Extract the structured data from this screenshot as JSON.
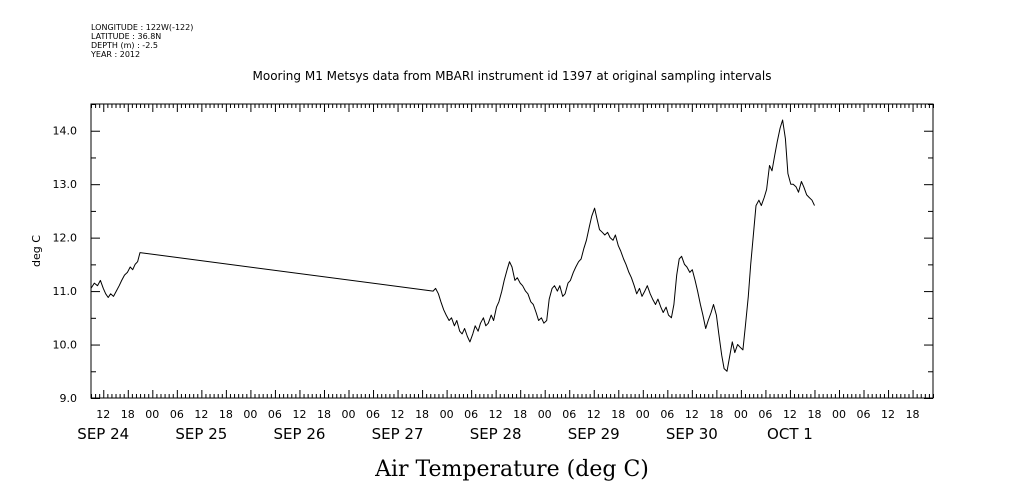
{
  "header": {
    "lines": [
      "LONGITUDE : 122W(-122)",
      "LATITUDE : 36.8N",
      "DEPTH (m) : -2.5",
      "YEAR : 2012"
    ]
  },
  "chart_data": {
    "type": "line",
    "title": "Mooring M1 Metsys data from MBARI instrument id 1397 at original sampling intervals",
    "xlabel": "Air Temperature (deg C)",
    "ylabel": "deg C",
    "x_unit": "hours since SEP 24 00:00 (2012)",
    "xlim": [
      9,
      215
    ],
    "ylim": [
      9.0,
      14.5
    ],
    "y_ticks": [
      9.0,
      10.0,
      11.0,
      12.0,
      13.0,
      14.0
    ],
    "hour_ticks": [
      {
        "t": 12,
        "label": "12"
      },
      {
        "t": 18,
        "label": "18"
      },
      {
        "t": 24,
        "label": "00"
      },
      {
        "t": 30,
        "label": "06"
      },
      {
        "t": 36,
        "label": "12"
      },
      {
        "t": 42,
        "label": "18"
      },
      {
        "t": 48,
        "label": "00"
      },
      {
        "t": 54,
        "label": "06"
      },
      {
        "t": 60,
        "label": "12"
      },
      {
        "t": 66,
        "label": "18"
      },
      {
        "t": 72,
        "label": "00"
      },
      {
        "t": 78,
        "label": "06"
      },
      {
        "t": 84,
        "label": "12"
      },
      {
        "t": 90,
        "label": "18"
      },
      {
        "t": 96,
        "label": "00"
      },
      {
        "t": 102,
        "label": "06"
      },
      {
        "t": 108,
        "label": "12"
      },
      {
        "t": 114,
        "label": "18"
      },
      {
        "t": 120,
        "label": "00"
      },
      {
        "t": 126,
        "label": "06"
      },
      {
        "t": 132,
        "label": "12"
      },
      {
        "t": 138,
        "label": "18"
      },
      {
        "t": 144,
        "label": "00"
      },
      {
        "t": 150,
        "label": "06"
      },
      {
        "t": 156,
        "label": "12"
      },
      {
        "t": 162,
        "label": "18"
      },
      {
        "t": 168,
        "label": "00"
      },
      {
        "t": 174,
        "label": "06"
      },
      {
        "t": 180,
        "label": "12"
      },
      {
        "t": 186,
        "label": "18"
      },
      {
        "t": 192,
        "label": "00"
      },
      {
        "t": 198,
        "label": "06"
      },
      {
        "t": 204,
        "label": "12"
      },
      {
        "t": 210,
        "label": "18"
      }
    ],
    "date_labels": [
      {
        "t": 12,
        "label": "SEP 24"
      },
      {
        "t": 36,
        "label": "SEP 25"
      },
      {
        "t": 60,
        "label": "SEP 26"
      },
      {
        "t": 84,
        "label": "SEP 27"
      },
      {
        "t": 108,
        "label": "SEP 28"
      },
      {
        "t": 132,
        "label": "SEP 29"
      },
      {
        "t": 156,
        "label": "SEP 30"
      },
      {
        "t": 180,
        "label": "OCT 1"
      }
    ],
    "series": [
      {
        "color": "#000000",
        "points": [
          [
            9.0,
            11.05
          ],
          [
            9.8,
            11.15
          ],
          [
            10.6,
            11.1
          ],
          [
            11.3,
            11.2
          ],
          [
            12.0,
            11.05
          ],
          [
            12.6,
            10.95
          ],
          [
            13.2,
            10.88
          ],
          [
            13.8,
            10.95
          ],
          [
            14.5,
            10.9
          ],
          [
            15.2,
            11.0
          ],
          [
            15.9,
            11.1
          ],
          [
            16.5,
            11.2
          ],
          [
            17.2,
            11.3
          ],
          [
            17.9,
            11.35
          ],
          [
            18.6,
            11.45
          ],
          [
            19.2,
            11.4
          ],
          [
            19.8,
            11.5
          ],
          [
            20.4,
            11.55
          ],
          [
            21.0,
            11.72
          ],
          [
            92.7,
            11.0
          ],
          [
            93.3,
            11.05
          ],
          [
            94.0,
            10.95
          ],
          [
            94.6,
            10.8
          ],
          [
            95.3,
            10.65
          ],
          [
            95.9,
            10.55
          ],
          [
            96.6,
            10.45
          ],
          [
            97.2,
            10.5
          ],
          [
            97.9,
            10.35
          ],
          [
            98.5,
            10.45
          ],
          [
            99.2,
            10.25
          ],
          [
            99.8,
            10.2
          ],
          [
            100.4,
            10.3
          ],
          [
            101.1,
            10.15
          ],
          [
            101.7,
            10.05
          ],
          [
            102.4,
            10.2
          ],
          [
            103.0,
            10.35
          ],
          [
            103.7,
            10.25
          ],
          [
            104.3,
            10.4
          ],
          [
            105.0,
            10.5
          ],
          [
            105.6,
            10.35
          ],
          [
            106.2,
            10.4
          ],
          [
            106.9,
            10.55
          ],
          [
            107.5,
            10.45
          ],
          [
            108.2,
            10.7
          ],
          [
            108.8,
            10.8
          ],
          [
            109.5,
            11.0
          ],
          [
            110.1,
            11.2
          ],
          [
            110.8,
            11.4
          ],
          [
            111.4,
            11.55
          ],
          [
            112.0,
            11.45
          ],
          [
            112.7,
            11.2
          ],
          [
            113.3,
            11.25
          ],
          [
            114.0,
            11.15
          ],
          [
            114.6,
            11.1
          ],
          [
            115.3,
            11.0
          ],
          [
            115.9,
            10.95
          ],
          [
            116.6,
            10.8
          ],
          [
            117.2,
            10.75
          ],
          [
            117.9,
            10.6
          ],
          [
            118.5,
            10.45
          ],
          [
            119.2,
            10.5
          ],
          [
            119.8,
            10.4
          ],
          [
            120.5,
            10.45
          ],
          [
            121.1,
            10.85
          ],
          [
            121.8,
            11.05
          ],
          [
            122.4,
            11.1
          ],
          [
            123.1,
            11.0
          ],
          [
            123.7,
            11.1
          ],
          [
            124.4,
            10.9
          ],
          [
            125.0,
            10.95
          ],
          [
            125.7,
            11.15
          ],
          [
            126.3,
            11.2
          ],
          [
            127.0,
            11.35
          ],
          [
            127.6,
            11.45
          ],
          [
            128.3,
            11.55
          ],
          [
            128.9,
            11.6
          ],
          [
            129.6,
            11.8
          ],
          [
            130.2,
            11.95
          ],
          [
            130.9,
            12.2
          ],
          [
            131.5,
            12.4
          ],
          [
            132.2,
            12.55
          ],
          [
            132.8,
            12.35
          ],
          [
            133.4,
            12.15
          ],
          [
            134.1,
            12.1
          ],
          [
            134.7,
            12.05
          ],
          [
            135.4,
            12.1
          ],
          [
            136.0,
            12.0
          ],
          [
            136.7,
            11.95
          ],
          [
            137.3,
            12.05
          ],
          [
            138.0,
            11.85
          ],
          [
            138.6,
            11.75
          ],
          [
            139.3,
            11.6
          ],
          [
            139.9,
            11.5
          ],
          [
            140.6,
            11.35
          ],
          [
            141.2,
            11.25
          ],
          [
            141.9,
            11.1
          ],
          [
            142.5,
            10.95
          ],
          [
            143.2,
            11.05
          ],
          [
            143.8,
            10.9
          ],
          [
            144.5,
            11.0
          ],
          [
            145.1,
            11.1
          ],
          [
            145.8,
            10.95
          ],
          [
            146.4,
            10.85
          ],
          [
            147.1,
            10.75
          ],
          [
            147.7,
            10.85
          ],
          [
            148.4,
            10.7
          ],
          [
            149.0,
            10.6
          ],
          [
            149.7,
            10.7
          ],
          [
            150.3,
            10.55
          ],
          [
            151.0,
            10.5
          ],
          [
            151.6,
            10.75
          ],
          [
            152.3,
            11.3
          ],
          [
            152.9,
            11.6
          ],
          [
            153.5,
            11.65
          ],
          [
            154.2,
            11.5
          ],
          [
            154.8,
            11.45
          ],
          [
            155.5,
            11.35
          ],
          [
            156.1,
            11.4
          ],
          [
            156.8,
            11.2
          ],
          [
            157.4,
            11.0
          ],
          [
            158.1,
            10.75
          ],
          [
            158.7,
            10.55
          ],
          [
            159.4,
            10.3
          ],
          [
            160.0,
            10.45
          ],
          [
            160.7,
            10.6
          ],
          [
            161.3,
            10.75
          ],
          [
            162.0,
            10.55
          ],
          [
            162.6,
            10.2
          ],
          [
            163.3,
            9.8
          ],
          [
            163.9,
            9.55
          ],
          [
            164.6,
            9.5
          ],
          [
            165.2,
            9.75
          ],
          [
            165.9,
            10.05
          ],
          [
            166.5,
            9.85
          ],
          [
            167.2,
            10.0
          ],
          [
            167.8,
            9.95
          ],
          [
            168.5,
            9.9
          ],
          [
            169.1,
            10.35
          ],
          [
            169.8,
            10.9
          ],
          [
            170.4,
            11.5
          ],
          [
            171.1,
            12.1
          ],
          [
            171.7,
            12.6
          ],
          [
            172.4,
            12.7
          ],
          [
            173.0,
            12.6
          ],
          [
            173.7,
            12.75
          ],
          [
            174.3,
            12.9
          ],
          [
            175.0,
            13.35
          ],
          [
            175.6,
            13.25
          ],
          [
            176.3,
            13.55
          ],
          [
            176.9,
            13.8
          ],
          [
            177.6,
            14.05
          ],
          [
            178.2,
            14.2
          ],
          [
            178.9,
            13.85
          ],
          [
            179.5,
            13.2
          ],
          [
            180.2,
            13.0
          ],
          [
            180.8,
            13.0
          ],
          [
            181.5,
            12.95
          ],
          [
            182.1,
            12.85
          ],
          [
            182.8,
            13.05
          ],
          [
            183.4,
            12.95
          ],
          [
            184.1,
            12.8
          ],
          [
            184.7,
            12.75
          ],
          [
            185.4,
            12.7
          ],
          [
            186.0,
            12.6
          ]
        ]
      }
    ]
  }
}
